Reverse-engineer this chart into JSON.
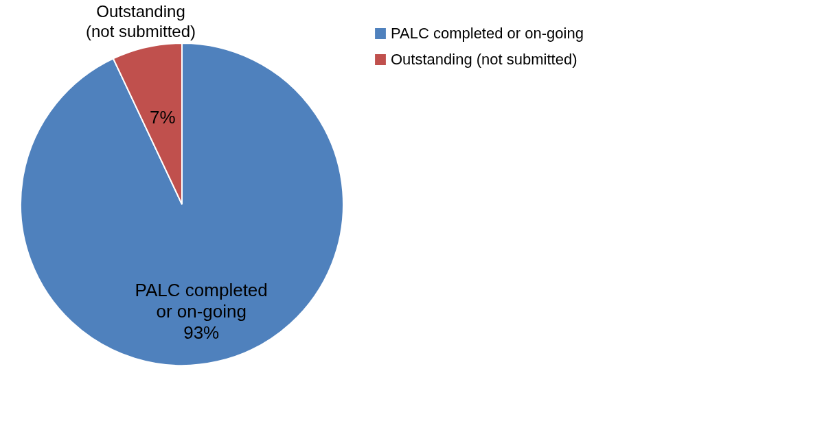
{
  "chart_data": {
    "type": "pie",
    "categories": [
      "PALC completed or on-going",
      "Outstanding (not submitted)"
    ],
    "values": [
      93,
      7
    ],
    "colors": [
      "#4f81bd",
      "#c0504d"
    ],
    "value_labels": [
      "93%",
      "7%"
    ],
    "legend": "right"
  }
}
